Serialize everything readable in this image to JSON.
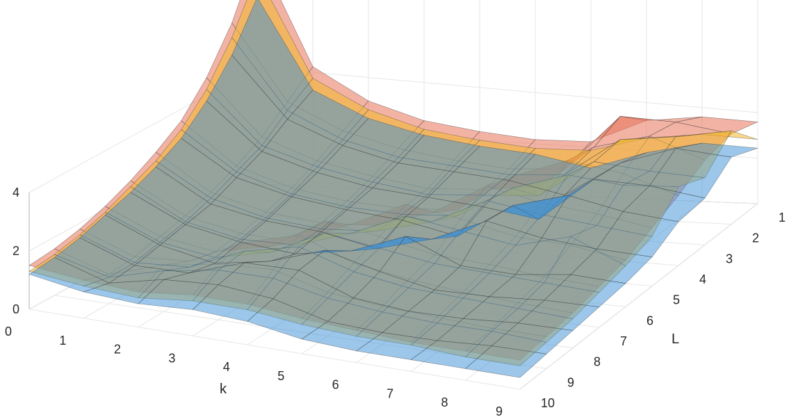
{
  "chart_data": {
    "type": "surface",
    "title": "",
    "xlabel": "k",
    "ylabel": "L",
    "zlabel": "",
    "x_ticks": [
      "0",
      "1",
      "2",
      "3",
      "4",
      "5",
      "6",
      "7",
      "8",
      "9"
    ],
    "y_ticks": [
      "1",
      "2",
      "3",
      "4",
      "5",
      "6",
      "7",
      "8",
      "9",
      "10"
    ],
    "z_ticks": [
      "0",
      "2",
      "4"
    ],
    "xlim": [
      0,
      9
    ],
    "ylim": [
      1,
      10
    ],
    "zlim": [
      0,
      4
    ],
    "grid": true,
    "colormap_note": "three semi-transparent surfaces",
    "series": [
      {
        "color": "#e8735a",
        "opacity": 0.55,
        "z": [
          [
            8.0,
            4.1,
            3.0,
            2.4,
            2.1,
            1.9,
            1.9,
            2.7,
            2.9,
            2.8
          ],
          [
            6.0,
            3.4,
            2.5,
            2.0,
            1.7,
            1.5,
            1.6,
            3.5,
            3.4,
            3.1
          ],
          [
            4.6,
            2.7,
            2.0,
            1.6,
            1.3,
            1.4,
            1.6,
            3.1,
            3.6,
            2.9
          ],
          [
            3.6,
            2.2,
            1.6,
            1.3,
            1.2,
            1.3,
            2.6,
            3.3,
            3.0,
            2.4
          ],
          [
            3.0,
            1.8,
            1.3,
            1.1,
            1.2,
            1.8,
            2.9,
            2.5,
            2.3,
            2.0
          ],
          [
            2.5,
            1.5,
            1.1,
            1.0,
            1.8,
            2.7,
            2.4,
            2.0,
            1.9,
            1.6
          ],
          [
            2.1,
            1.3,
            1.0,
            1.4,
            2.5,
            2.2,
            1.8,
            1.7,
            1.5,
            1.4
          ],
          [
            1.8,
            1.1,
            1.2,
            2.1,
            2.6,
            1.9,
            1.6,
            1.4,
            1.3,
            1.2
          ],
          [
            1.6,
            1.0,
            1.6,
            1.9,
            2.0,
            1.5,
            1.3,
            1.2,
            1.1,
            1.1
          ],
          [
            1.5,
            1.3,
            1.2,
            1.4,
            1.4,
            1.2,
            1.1,
            1.0,
            1.0,
            1.0
          ]
        ]
      },
      {
        "color": "#f2b92e",
        "opacity": 0.55,
        "z": [
          [
            7.2,
            3.7,
            2.7,
            2.1,
            1.8,
            1.6,
            1.6,
            2.1,
            2.3,
            2.2
          ],
          [
            5.5,
            3.1,
            2.2,
            1.7,
            1.5,
            1.3,
            1.4,
            2.7,
            2.9,
            3.2
          ],
          [
            4.2,
            2.4,
            1.8,
            1.4,
            1.1,
            1.2,
            1.3,
            2.6,
            2.4,
            2.3
          ],
          [
            3.3,
            2.0,
            1.4,
            1.1,
            1.0,
            1.1,
            2.2,
            2.8,
            2.6,
            2.7
          ],
          [
            2.7,
            1.6,
            1.1,
            0.9,
            1.0,
            1.5,
            2.4,
            2.1,
            1.9,
            1.7
          ],
          [
            2.3,
            1.3,
            0.9,
            0.9,
            1.5,
            2.3,
            2.0,
            1.7,
            2.2,
            1.4
          ],
          [
            1.9,
            1.1,
            0.8,
            1.2,
            2.1,
            1.8,
            1.5,
            1.4,
            1.3,
            1.2
          ],
          [
            1.6,
            0.9,
            1.0,
            1.8,
            2.2,
            1.6,
            1.3,
            1.2,
            1.1,
            1.0
          ],
          [
            1.4,
            0.9,
            1.4,
            1.7,
            1.7,
            1.3,
            1.1,
            1.0,
            1.0,
            0.9
          ],
          [
            1.3,
            1.1,
            1.0,
            1.2,
            1.2,
            1.0,
            0.9,
            0.9,
            0.8,
            0.8
          ]
        ]
      },
      {
        "color": "#3a8fd6",
        "opacity": 0.5,
        "z": [
          [
            6.4,
            3.3,
            2.4,
            1.9,
            1.6,
            1.4,
            1.0,
            1.6,
            2.0,
            1.9
          ],
          [
            4.9,
            2.8,
            2.0,
            1.5,
            1.3,
            1.1,
            0.7,
            1.9,
            2.5,
            2.3
          ],
          [
            3.8,
            2.2,
            1.6,
            1.2,
            1.0,
            0.8,
            0.5,
            2.0,
            1.9,
            1.6
          ],
          [
            3.0,
            1.8,
            1.3,
            1.0,
            0.8,
            0.4,
            1.6,
            2.1,
            1.7,
            1.5
          ],
          [
            2.5,
            1.4,
            1.0,
            0.8,
            0.4,
            0.9,
            1.7,
            1.3,
            1.1,
            1.0
          ],
          [
            2.1,
            1.2,
            0.8,
            0.6,
            0.9,
            1.6,
            0.8,
            0.7,
            0.9,
            0.8
          ],
          [
            1.8,
            1.0,
            0.6,
            0.9,
            1.5,
            1.0,
            0.6,
            0.6,
            0.7,
            0.7
          ],
          [
            1.5,
            0.8,
            0.8,
            1.4,
            1.4,
            0.7,
            0.5,
            0.5,
            0.6,
            0.6
          ],
          [
            1.3,
            0.7,
            1.1,
            1.2,
            1.0,
            0.5,
            0.4,
            0.4,
            0.5,
            0.5
          ],
          [
            1.2,
            0.9,
            0.8,
            0.9,
            0.8,
            0.5,
            0.4,
            0.4,
            0.4,
            0.4
          ]
        ]
      }
    ]
  }
}
